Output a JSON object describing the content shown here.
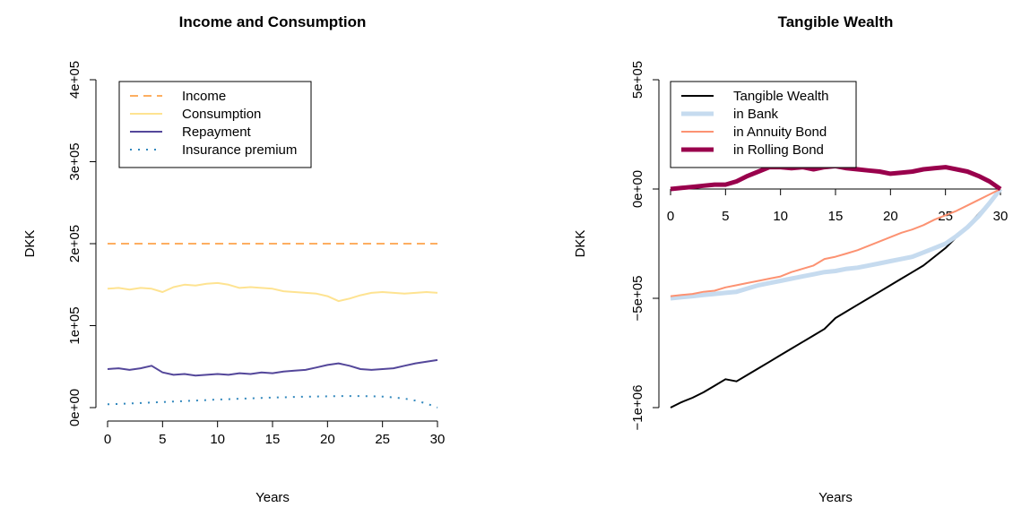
{
  "chart_data": [
    {
      "type": "line",
      "title": "Income and Consumption",
      "xlabel": "Years",
      "ylabel": "DKK",
      "x": [
        0,
        1,
        2,
        3,
        4,
        5,
        6,
        7,
        8,
        9,
        10,
        11,
        12,
        13,
        14,
        15,
        16,
        17,
        18,
        19,
        20,
        21,
        22,
        23,
        24,
        25,
        26,
        27,
        28,
        29,
        30
      ],
      "xlim": [
        0,
        30
      ],
      "xticks": [
        0,
        5,
        10,
        15,
        20,
        25,
        30
      ],
      "ylim": [
        0,
        400000
      ],
      "yticks": [
        {
          "value": 0,
          "label": "0e+00"
        },
        {
          "value": 100000,
          "label": "1e+05"
        },
        {
          "value": 200000,
          "label": "2e+05"
        },
        {
          "value": 300000,
          "label": "3e+05"
        },
        {
          "value": 400000,
          "label": "4e+05"
        }
      ],
      "legend": "top-left",
      "series": [
        {
          "name": "Income",
          "color": "#fdae61",
          "linestyle": "dashed",
          "linewidth": 2,
          "values": [
            200000,
            200000,
            200000,
            200000,
            200000,
            200000,
            200000,
            200000,
            200000,
            200000,
            200000,
            200000,
            200000,
            200000,
            200000,
            200000,
            200000,
            200000,
            200000,
            200000,
            200000,
            200000,
            200000,
            200000,
            200000,
            200000,
            200000,
            200000,
            200000,
            200000,
            200000
          ]
        },
        {
          "name": "Consumption",
          "color": "#fee391",
          "linestyle": "solid",
          "linewidth": 2,
          "values": [
            145000,
            146000,
            144000,
            146000,
            145000,
            141000,
            147000,
            150000,
            149000,
            151000,
            152000,
            150000,
            146000,
            147000,
            146000,
            145000,
            142000,
            141000,
            140000,
            139000,
            136000,
            130000,
            133000,
            137000,
            140000,
            141000,
            140000,
            139000,
            140000,
            141000,
            140000
          ]
        },
        {
          "name": "Repayment",
          "color": "#54479a",
          "linestyle": "solid",
          "linewidth": 2,
          "values": [
            47000,
            48000,
            46000,
            48000,
            51000,
            43000,
            40000,
            41000,
            39000,
            40000,
            41000,
            40000,
            42000,
            41000,
            43000,
            42000,
            44000,
            45000,
            46000,
            49000,
            52000,
            54000,
            51000,
            47000,
            46000,
            47000,
            48000,
            51000,
            54000,
            56000,
            58000
          ]
        },
        {
          "name": "Insurance premium",
          "color": "#3288bd",
          "linestyle": "dotted",
          "linewidth": 2,
          "values": [
            4000,
            4500,
            5000,
            5600,
            6200,
            6800,
            7400,
            8000,
            8600,
            9200,
            9800,
            10300,
            10800,
            11300,
            11800,
            12200,
            12600,
            13000,
            13300,
            13600,
            13800,
            14000,
            14100,
            14100,
            13900,
            13400,
            12500,
            11000,
            8500,
            5000,
            0
          ]
        }
      ]
    },
    {
      "type": "line",
      "title": "Tangible Wealth",
      "xlabel": "Years",
      "ylabel": "DKK",
      "x": [
        0,
        1,
        2,
        3,
        4,
        5,
        6,
        7,
        8,
        9,
        10,
        11,
        12,
        13,
        14,
        15,
        16,
        17,
        18,
        19,
        20,
        21,
        22,
        23,
        24,
        25,
        26,
        27,
        28,
        29,
        30
      ],
      "xlim": [
        0,
        30
      ],
      "xticks": [
        0,
        5,
        10,
        15,
        20,
        25,
        30
      ],
      "ylim": [
        -1000000,
        500000
      ],
      "yticks": [
        {
          "value": -1000000,
          "label": "−1e+06"
        },
        {
          "value": -500000,
          "label": "−5e+05"
        },
        {
          "value": 0,
          "label": "0e+00"
        },
        {
          "value": 500000,
          "label": "5e+05"
        }
      ],
      "legend": "top-left",
      "series": [
        {
          "name": "Tangible Wealth",
          "color": "#000000",
          "linestyle": "solid",
          "linewidth": 2,
          "values": [
            -1000000,
            -975000,
            -955000,
            -930000,
            -900000,
            -870000,
            -880000,
            -850000,
            -820000,
            -790000,
            -760000,
            -730000,
            -700000,
            -670000,
            -640000,
            -590000,
            -560000,
            -530000,
            -500000,
            -470000,
            -440000,
            -410000,
            -380000,
            -350000,
            -310000,
            -270000,
            -220000,
            -170000,
            -115000,
            -60000,
            0
          ]
        },
        {
          "name": "in Bank",
          "color": "#c6dbef",
          "linestyle": "solid",
          "linewidth": 5,
          "values": [
            -500000,
            -495000,
            -490000,
            -485000,
            -480000,
            -475000,
            -470000,
            -455000,
            -440000,
            -430000,
            -420000,
            -410000,
            -400000,
            -390000,
            -380000,
            -375000,
            -365000,
            -360000,
            -350000,
            -340000,
            -330000,
            -320000,
            -310000,
            -290000,
            -270000,
            -250000,
            -215000,
            -175000,
            -125000,
            -65000,
            0
          ]
        },
        {
          "name": "in Annuity Bond",
          "color": "#fc9272",
          "linestyle": "solid",
          "linewidth": 2,
          "values": [
            -490000,
            -485000,
            -480000,
            -470000,
            -465000,
            -450000,
            -440000,
            -430000,
            -420000,
            -410000,
            -400000,
            -380000,
            -365000,
            -350000,
            -320000,
            -310000,
            -295000,
            -280000,
            -260000,
            -240000,
            -220000,
            -200000,
            -185000,
            -165000,
            -140000,
            -120000,
            -100000,
            -75000,
            -50000,
            -25000,
            0
          ]
        },
        {
          "name": "in Rolling Bond",
          "color": "#99004c",
          "linestyle": "solid",
          "linewidth": 5,
          "values": [
            0,
            5000,
            10000,
            15000,
            20000,
            20000,
            35000,
            60000,
            80000,
            100000,
            100000,
            95000,
            100000,
            90000,
            100000,
            105000,
            95000,
            90000,
            85000,
            80000,
            70000,
            75000,
            80000,
            90000,
            95000,
            100000,
            90000,
            80000,
            60000,
            35000,
            0
          ]
        }
      ]
    }
  ]
}
